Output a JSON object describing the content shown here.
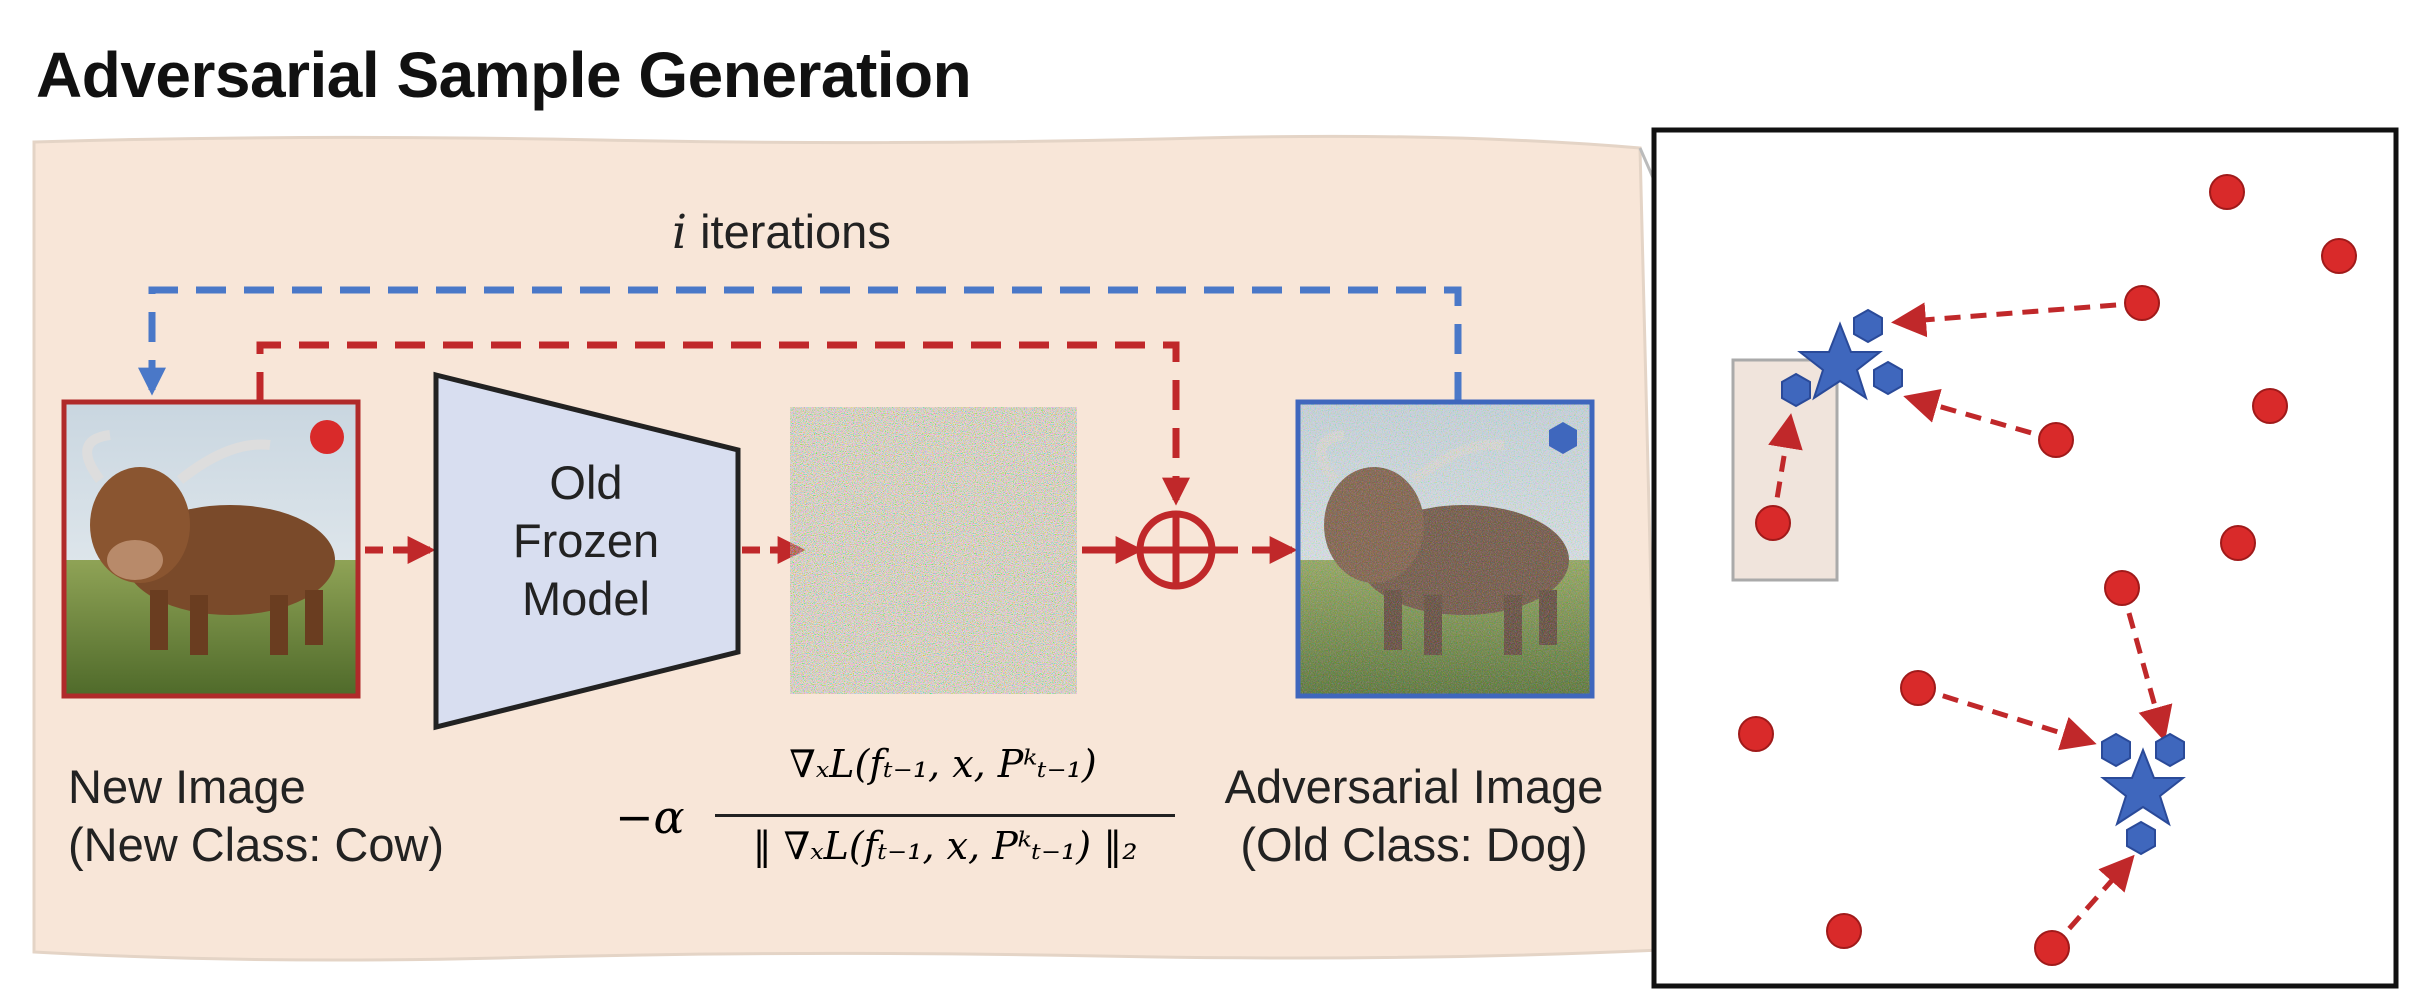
{
  "title": "Adversarial Sample Generation",
  "loop": {
    "variable": "i",
    "label": "iterations"
  },
  "model": {
    "line1": "Old",
    "line2": "Frozen",
    "line3": "Model"
  },
  "new_image": {
    "line1": "New Image",
    "line2": "(New Class: Cow)"
  },
  "adv_image": {
    "line1": "Adversarial Image",
    "line2": "(Old Class: Dog)"
  },
  "formula": {
    "prefix": "−α",
    "numerator": "∇ₓL(fₜ₋₁, x, Pᵏₜ₋₁)",
    "denominator": "‖ ∇ₓL(fₜ₋₁, x, Pᵏₜ₋₁) ‖₂"
  },
  "colors": {
    "red": "#c0282a",
    "blue": "#4a78c8",
    "panel": "#f8e6d8",
    "model_fill": "#d8def0",
    "star": "#3f67bd"
  },
  "icons": {
    "old_class_marker": "red-circle",
    "adversarial_marker": "blue-hexagon",
    "class_center": "blue-star",
    "add_operator": "circled-plus"
  }
}
